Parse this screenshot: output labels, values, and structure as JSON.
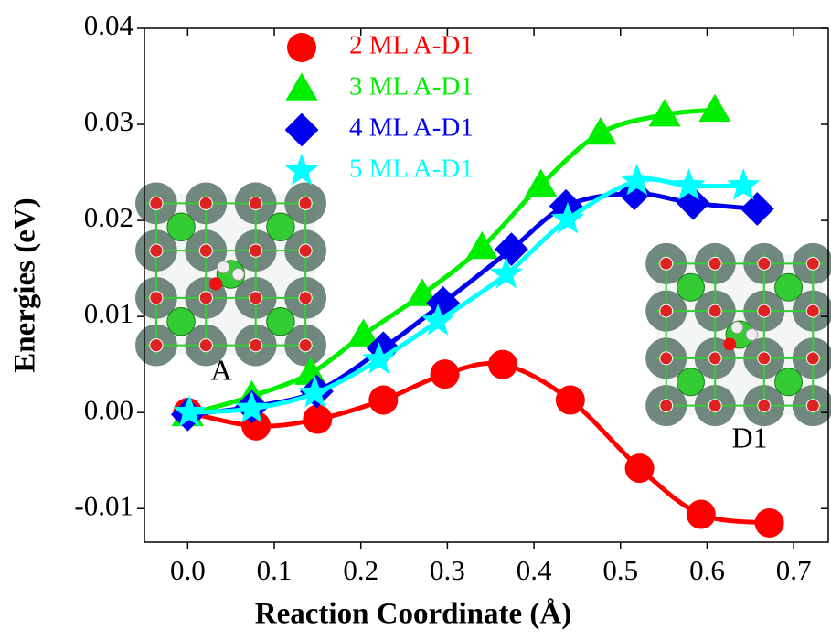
{
  "chart_data": {
    "type": "scatter",
    "xlabel": "Reaction Coordinate (Å)",
    "ylabel": "Energies (eV)",
    "xlim": [
      -0.05,
      0.74
    ],
    "ylim": [
      -0.0135,
      0.04
    ],
    "xticks": [
      {
        "value": 0,
        "label": "0.0"
      },
      0.1,
      0.2,
      0.3,
      0.4,
      0.5,
      0.6,
      0.7
    ],
    "yticks": [
      0.04,
      0.03,
      0.02,
      0.01,
      {
        "value": 0,
        "label": "0.00"
      },
      -0.01
    ],
    "legend": "upper left",
    "inset_labels": [
      "A",
      "D1"
    ],
    "series": [
      {
        "name": "2 ML A-D1",
        "color": "#ff0000",
        "marker": "circle",
        "x": [
          0,
          0.079,
          0.15,
          0.226,
          0.297,
          0.364,
          0.442,
          0.522,
          0.593,
          0.672
        ],
        "values": [
          0,
          -0.0014,
          -0.0007,
          0.0013,
          0.004,
          0.005,
          0.0013,
          -0.0058,
          -0.0106,
          -0.0115
        ]
      },
      {
        "name": "3 ML A-D1",
        "color": "#00ee00",
        "marker": "triangle",
        "x": [
          0,
          0.074,
          0.142,
          0.203,
          0.271,
          0.34,
          0.408,
          0.477,
          0.551,
          0.609
        ],
        "values": [
          -0.0002,
          0.0017,
          0.0041,
          0.0081,
          0.0123,
          0.0172,
          0.0237,
          0.0291,
          0.031,
          0.0315
        ]
      },
      {
        "name": "4 ML A-D1",
        "color": "#0000ee",
        "marker": "diamond",
        "x": [
          0,
          0.074,
          0.149,
          0.226,
          0.295,
          0.374,
          0.437,
          0.516,
          0.584,
          0.658
        ],
        "values": [
          -0.0002,
          0.0006,
          0.0022,
          0.0067,
          0.0114,
          0.017,
          0.0215,
          0.0228,
          0.0218,
          0.0212
        ]
      },
      {
        "name": "5 ML A-D1",
        "color": "#00ffff",
        "marker": "star",
        "x": [
          0.002,
          0.074,
          0.147,
          0.221,
          0.289,
          0.368,
          0.439,
          0.519,
          0.579,
          0.642
        ],
        "values": [
          0,
          0.0004,
          0.002,
          0.0055,
          0.0095,
          0.0144,
          0.0201,
          0.0241,
          0.0236,
          0.0236
        ]
      }
    ]
  }
}
